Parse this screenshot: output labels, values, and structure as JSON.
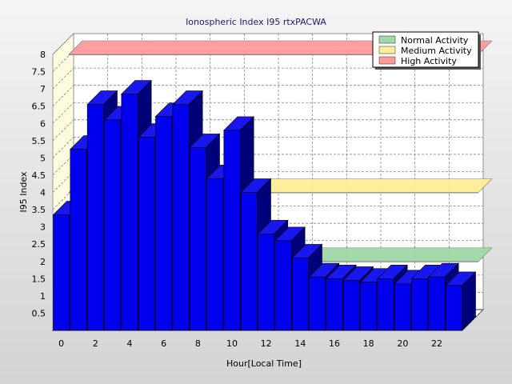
{
  "chart_data": {
    "type": "bar",
    "title": "Ionospheric Index I95 rtxPACWA",
    "xlabel": "Hour[Local Time]",
    "ylabel": "I95 Index",
    "ylim": [
      0,
      8
    ],
    "yticks": [
      "0.5",
      "1",
      "1.5",
      "2",
      "2.5",
      "3",
      "3.5",
      "4",
      "4.5",
      "5",
      "5.5",
      "6",
      "6.5",
      "7",
      "7.5",
      "8"
    ],
    "xticks": [
      "0",
      "2",
      "4",
      "6",
      "8",
      "10",
      "12",
      "14",
      "16",
      "18",
      "20",
      "22"
    ],
    "x": [
      0,
      1,
      2,
      3,
      4,
      5,
      6,
      7,
      8,
      9,
      10,
      11,
      12,
      13,
      14,
      15,
      16,
      17,
      18,
      19,
      20,
      21,
      22,
      23
    ],
    "values": [
      3.35,
      5.25,
      6.55,
      6.1,
      6.85,
      5.6,
      6.2,
      6.55,
      5.3,
      4.4,
      5.8,
      4.0,
      2.8,
      2.6,
      2.1,
      1.55,
      1.5,
      1.45,
      1.4,
      1.5,
      1.35,
      1.5,
      1.55,
      1.3
    ],
    "bar_color": "#0000ee",
    "grid": true,
    "legend_position": "top-right",
    "bands": [
      {
        "name": "Normal Activity",
        "value": 2.0,
        "color": "#a0d8a8"
      },
      {
        "name": "Medium Activity",
        "value": 4.0,
        "color": "#ffee99"
      },
      {
        "name": "High Activity",
        "value": 8.0,
        "color": "#ff9a9a"
      }
    ]
  }
}
